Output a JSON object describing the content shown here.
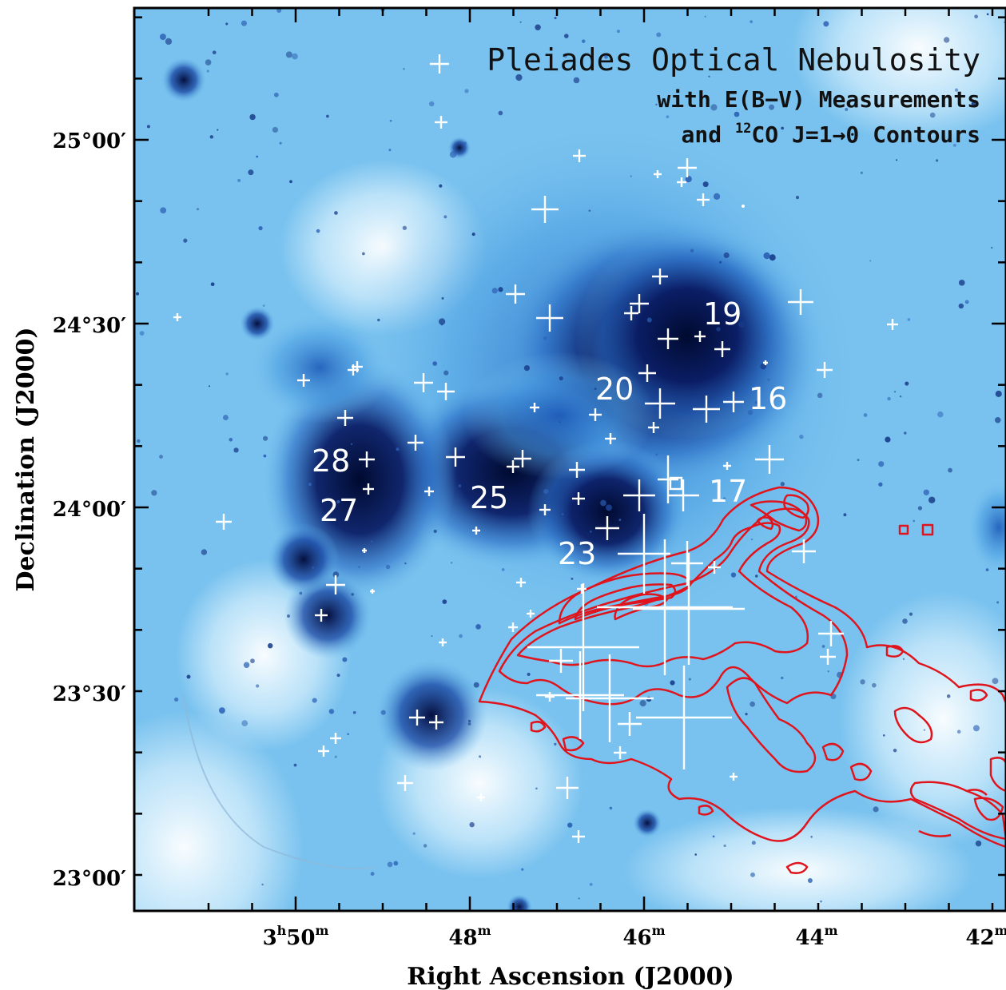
{
  "title": {
    "main": "Pleiades Optical Nebulosity",
    "line2": "with E(B−V) Measurements",
    "line3_prefix": "and ",
    "line3_sup": "12",
    "line3_suffix": "CO J=1→0 Contours"
  },
  "axes": {
    "xlabel": "Right Ascension (J2000)",
    "ylabel": "Declination (J2000)",
    "x_ticks": [
      {
        "main": "3",
        "sup1": "h",
        "mid": "50",
        "sup2": "m"
      },
      {
        "main": "48",
        "sup2": "m"
      },
      {
        "main": "46",
        "sup2": "m"
      },
      {
        "main": "44",
        "sup2": "m"
      },
      {
        "main": "42",
        "sup2": "m"
      }
    ],
    "y_ticks": [
      "25°00′",
      "24°30′",
      "24°00′",
      "23°30′",
      "23°00′"
    ]
  },
  "region_labels": [
    "19",
    "20",
    "16",
    "28",
    "27",
    "25",
    "17",
    "23"
  ],
  "colors": {
    "nebula_light": "#d8f4ff",
    "nebula_mid": "#5fb2ea",
    "nebula_dark": "#0a1a55",
    "markers": "#ffffff",
    "contours": "#e0141c",
    "frame": "#000000"
  }
}
